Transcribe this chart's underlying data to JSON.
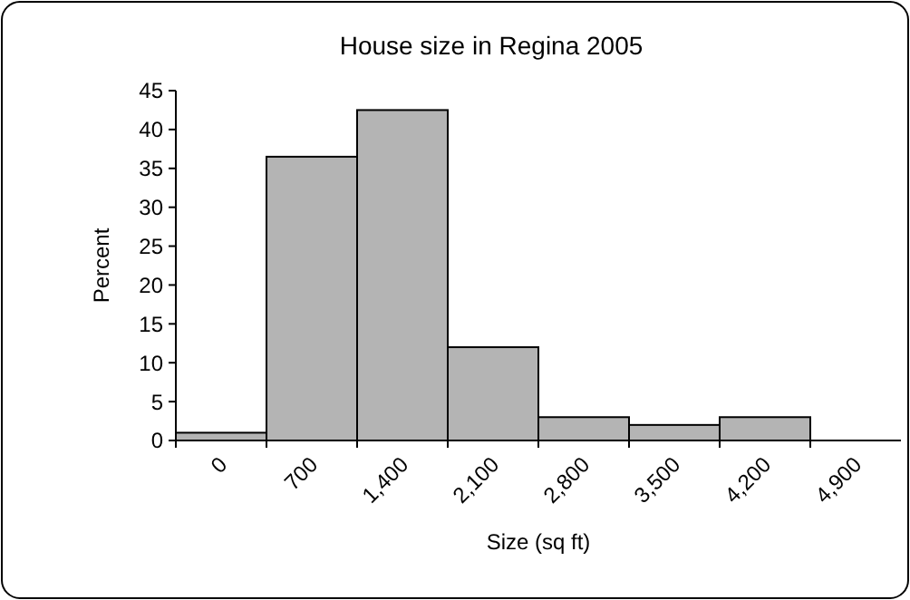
{
  "chart_data": {
    "type": "bar",
    "title": "House size in Regina 2005",
    "xlabel": "Size (sq ft)",
    "ylabel": "Percent",
    "categories": [
      "0",
      "700",
      "1,400",
      "2,100",
      "2,800",
      "3,500",
      "4,200",
      "4,900"
    ],
    "values": [
      1,
      36.5,
      42.5,
      12,
      3,
      2,
      3,
      null
    ],
    "color": "#b4b4b4",
    "ylim": [
      0,
      45
    ],
    "yticks": [
      0,
      5,
      10,
      15,
      20,
      25,
      30,
      35,
      40,
      45
    ],
    "grid": false
  }
}
